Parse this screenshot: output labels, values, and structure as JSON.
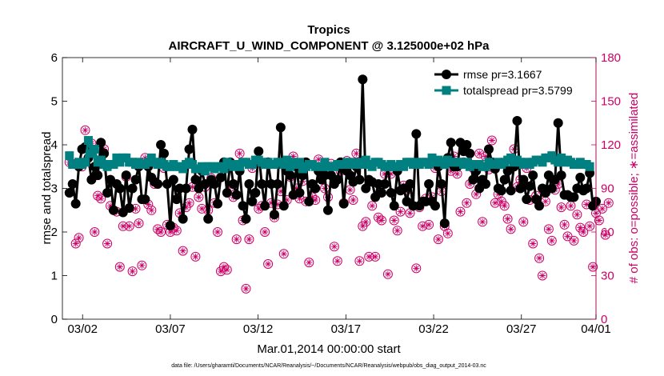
{
  "chart_data": {
    "type": "line",
    "title": "Tropics",
    "subtitle": "AIRCRAFT_U_WIND_COMPONENT @ 3.125000e+02 hPa",
    "xlabel": "Mar.01,2014 00:00:00 start",
    "ylabel": "rmse and totalspread",
    "y2label": "# of obs: o=possible; ∗=assimilated",
    "footnote": "data file: /Users/gharamti/Documents/NCAR/Reanalysis/~/Documents/NCAR/Reanalysis/webpub/obs_diag_output_2014-03.nc",
    "xlim": [
      0.6,
      31.0
    ],
    "ylim": [
      0,
      6
    ],
    "y2lim": [
      0,
      180
    ],
    "xticks": [
      {
        "value": 1.75,
        "label": "03/02"
      },
      {
        "value": 6.75,
        "label": "03/07"
      },
      {
        "value": 11.75,
        "label": "03/12"
      },
      {
        "value": 16.75,
        "label": "03/17"
      },
      {
        "value": 21.75,
        "label": "03/22"
      },
      {
        "value": 26.75,
        "label": "03/27"
      },
      {
        "value": 31.0,
        "label": "04/01"
      }
    ],
    "yticks": [
      "0",
      "1",
      "2",
      "3",
      "4",
      "5",
      "6"
    ],
    "y2ticks": [
      "0",
      "30",
      "60",
      "90",
      "120",
      "150",
      "180"
    ],
    "legend_position": "top-right",
    "colors": {
      "rmse": "#000000",
      "totalspread": "#008080",
      "obs": "#cc0066"
    },
    "series": [
      {
        "name": "rmse pr=3.1667",
        "marker": "circle",
        "values": [
          2.9,
          3.1,
          2.65,
          3.5,
          3.9,
          3.95,
          3.7,
          3.2,
          3.5,
          3.3,
          4.05,
          3.8,
          2.9,
          3.2,
          2.5,
          3.1,
          3.0,
          2.45,
          3.3,
          2.55,
          3.0,
          3.2,
          3.5,
          2.75,
          2.75,
          3.5,
          3.25,
          3.15,
          3.1,
          4.0,
          3.8,
          3.1,
          2.15,
          3.2,
          2.75,
          3.0,
          2.3,
          3.0,
          3.9,
          4.35,
          3.2,
          3.0,
          3.4,
          3.1,
          2.3,
          3.2,
          3.1,
          2.65,
          3.25,
          3.6,
          2.9,
          3.6,
          3.1,
          2.85,
          3.4,
          2.6,
          2.3,
          3.1,
          2.7,
          2.9,
          3.85,
          3.1,
          2.6,
          3.6,
          3.1,
          2.4,
          3.1,
          4.4,
          2.6,
          3.4,
          3.3,
          2.85,
          3.5,
          2.9,
          3.3,
          3.6,
          2.7,
          3.1,
          3.0,
          3.4,
          3.2,
          3.3,
          2.5,
          3.3,
          3.1,
          3.2,
          3.6,
          2.65,
          3.4,
          3.3,
          3.15,
          3.5,
          3.2,
          5.5,
          3.0,
          3.2,
          3.15,
          2.8,
          3.1,
          2.9,
          3.1,
          3.5,
          2.9,
          2.6,
          3.4,
          2.95,
          3.0,
          2.7,
          3.1,
          2.6,
          4.25,
          2.6,
          2.7,
          2.7,
          3.1,
          2.7,
          2.6,
          3.5,
          3.1,
          2.2,
          3.7,
          4.05,
          3.5,
          3.5,
          4.05,
          3.85,
          4.0,
          3.8,
          3.2,
          3.4,
          3.0,
          3.2,
          3.1,
          3.9,
          3.6,
          3.45,
          3.0,
          2.95,
          3.2,
          3.4,
          2.95,
          3.5,
          4.55,
          3.0,
          3.2,
          2.75,
          3.05,
          3.3,
          2.75,
          2.6,
          3.0,
          2.9,
          3.3,
          3.0,
          3.2,
          4.5,
          3.3,
          2.85,
          2.85,
          2.8,
          2.8,
          3.0,
          3.25,
          2.95,
          3.0,
          3.35,
          2.6,
          2.7
        ]
      },
      {
        "name": "totalspread pr=3.5799",
        "marker": "square",
        "values": [
          3.75,
          3.55,
          3.55,
          3.6,
          3.55,
          3.6,
          4.1,
          3.8,
          3.9,
          3.6,
          3.65,
          3.55,
          3.5,
          3.55,
          3.55,
          3.7,
          3.6,
          3.7,
          3.7,
          3.6,
          3.6,
          3.55,
          3.6,
          3.55,
          3.55,
          3.6,
          3.7,
          3.6,
          3.55,
          3.6,
          3.55,
          3.5,
          3.5,
          3.55,
          3.5,
          3.5,
          3.45,
          3.55,
          3.6,
          3.55,
          3.45,
          3.45,
          3.5,
          3.4,
          3.5,
          3.5,
          3.45,
          3.5,
          3.5,
          3.45,
          3.6,
          3.55,
          3.5,
          3.55,
          3.5,
          3.6,
          3.6,
          3.55,
          3.55,
          3.65,
          3.65,
          3.6,
          3.55,
          3.6,
          3.55,
          3.55,
          3.6,
          3.6,
          3.55,
          3.65,
          3.5,
          3.6,
          3.55,
          3.6,
          3.45,
          3.5,
          3.55,
          3.55,
          3.5,
          3.5,
          3.5,
          3.6,
          3.5,
          3.5,
          3.5,
          3.55,
          3.55,
          3.55,
          3.6,
          3.55,
          3.6,
          3.55,
          3.6,
          3.55,
          3.65,
          3.55,
          3.5,
          3.6,
          3.6,
          3.55,
          3.5,
          3.5,
          3.55,
          3.5,
          3.5,
          3.55,
          3.5,
          3.6,
          3.6,
          3.55,
          3.6,
          3.55,
          3.6,
          3.6,
          3.55,
          3.7,
          3.6,
          3.65,
          3.6,
          3.55,
          3.65,
          3.6,
          3.6,
          3.6,
          3.6,
          3.55,
          3.6,
          3.5,
          3.55,
          3.55,
          3.55,
          3.5,
          3.5,
          3.6,
          3.55,
          3.55,
          3.6,
          3.55,
          3.6,
          3.65,
          3.7,
          3.6,
          3.65,
          3.6,
          3.55,
          3.6,
          3.55,
          3.6,
          3.65,
          3.65,
          3.6,
          3.7,
          3.7,
          3.75,
          3.65,
          3.6,
          3.7,
          3.6,
          3.65,
          3.6,
          3.55,
          3.55,
          3.6,
          3.55,
          3.55,
          3.5
        ]
      },
      {
        "name": "obs possible/assimilated",
        "axis": "right",
        "marker": "circle-asterisk",
        "values": [
          108,
          107,
          52,
          56,
          105,
          130,
          117,
          121,
          60,
          85,
          83,
          117,
          52,
          78,
          75,
          74,
          36,
          64,
          98,
          64,
          33,
          76,
          66,
          37,
          111,
          79,
          75,
          93,
          62,
          60,
          104,
          65,
          60,
          63,
          61,
          73,
          47,
          77,
          80,
          91,
          43,
          84,
          76,
          91,
          75,
          97,
          80,
          60,
          33,
          36,
          34,
          91,
          84,
          55,
          114,
          68,
          21,
          55,
          104,
          87,
          76,
          78,
          60,
          38,
          80,
          70,
          79,
          88,
          45,
          82,
          98,
          112,
          90,
          83,
          95,
          81,
          39,
          84,
          82,
          110,
          100,
          90,
          84,
          107,
          50,
          40,
          102,
          80,
          109,
          89,
          82,
          114,
          40,
          64,
          67,
          43,
          78,
          43,
          70,
          68,
          100,
          31,
          100,
          68,
          61,
          74,
          92,
          89,
          73,
          78,
          35,
          77,
          64,
          83,
          65,
          84,
          104,
          55,
          88,
          64,
          59,
          102,
          112,
          100,
          74,
          108,
          80,
          93,
          104,
          86,
          114,
          67,
          112,
          103,
          123,
          80,
          86,
          81,
          78,
          69,
          62,
          117,
          91,
          96,
          67,
          104,
          82,
          52,
          85,
          42,
          30,
          81,
          62,
          54,
          89,
          93,
          77,
          65,
          57,
          78,
          54,
          72,
          63,
          60,
          79,
          64,
          36,
          73,
          68,
          76,
          58,
          80
        ]
      }
    ]
  }
}
